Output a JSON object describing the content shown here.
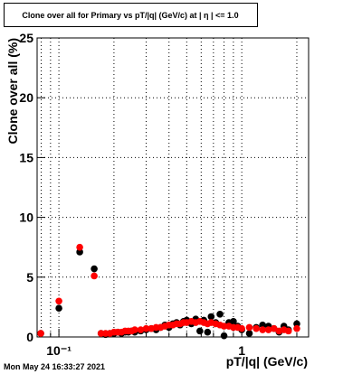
{
  "chart_data": {
    "type": "scatter",
    "title": "Clone  over all for Primary vs pT/|q| (GeV/c) at |  η | <= 1.0",
    "x_label": "pT/|q| (GeV/c)",
    "y_label": "Clone  over all (%)",
    "timestamp": "Mon May 24 16:33:27 2021",
    "x_log": true,
    "grid": true,
    "xlim": [
      0.076,
      2.32
    ],
    "xticks": [
      {
        "value": 0.1,
        "label": "10⁻¹"
      },
      1
    ],
    "xminorticks": [
      0.08,
      0.09,
      0.2,
      0.3,
      0.4,
      0.5,
      0.6,
      0.7,
      0.8,
      0.9,
      2
    ],
    "ylim": [
      0,
      25
    ],
    "yticks": [
      0,
      5,
      10,
      15,
      20,
      25
    ],
    "x": [
      0.0796,
      0.1,
      0.13,
      0.156,
      0.17,
      0.18,
      0.19,
      0.2,
      0.21,
      0.22,
      0.23,
      0.24,
      0.25,
      0.26,
      0.28,
      0.3,
      0.32,
      0.34,
      0.36,
      0.38,
      0.4,
      0.42,
      0.44,
      0.46,
      0.48,
      0.5,
      0.53,
      0.56,
      0.59,
      0.62,
      0.65,
      0.68,
      0.72,
      0.76,
      0.8,
      0.85,
      0.9,
      0.95,
      1.0,
      1.1,
      1.2,
      1.3,
      1.4,
      1.5,
      1.6,
      1.7,
      1.8,
      2.0
    ],
    "series": [
      {
        "color": "#000000",
        "values": [
          0.3,
          2.4,
          7.1,
          5.7,
          0.3,
          0.2,
          0.3,
          0.3,
          0.4,
          0.3,
          0.4,
          0.4,
          0.5,
          0.4,
          0.5,
          0.6,
          0.7,
          0.6,
          0.8,
          1.0,
          0.8,
          1.1,
          1.2,
          1.0,
          1.3,
          1.4,
          1.1,
          1.5,
          0.5,
          1.4,
          0.4,
          1.7,
          1.2,
          1.9,
          0.1,
          1.2,
          1.3,
          0.9,
          0.6,
          0.3,
          0.8,
          1.0,
          0.9,
          0.7,
          0.4,
          0.9,
          0.6,
          1.1
        ]
      },
      {
        "color": "#ff0000",
        "values": [
          0.3,
          3.0,
          7.5,
          5.1,
          0.3,
          0.3,
          0.3,
          0.4,
          0.4,
          0.4,
          0.5,
          0.5,
          0.5,
          0.6,
          0.6,
          0.7,
          0.7,
          0.8,
          0.8,
          0.9,
          1.0,
          1.0,
          1.1,
          1.1,
          1.2,
          1.2,
          1.3,
          1.2,
          1.3,
          1.2,
          1.1,
          1.2,
          1.1,
          1.0,
          0.9,
          0.9,
          0.8,
          0.8,
          0.7,
          0.8,
          0.7,
          0.6,
          0.6,
          0.7,
          0.5,
          0.6,
          0.5,
          0.7
        ]
      }
    ]
  }
}
